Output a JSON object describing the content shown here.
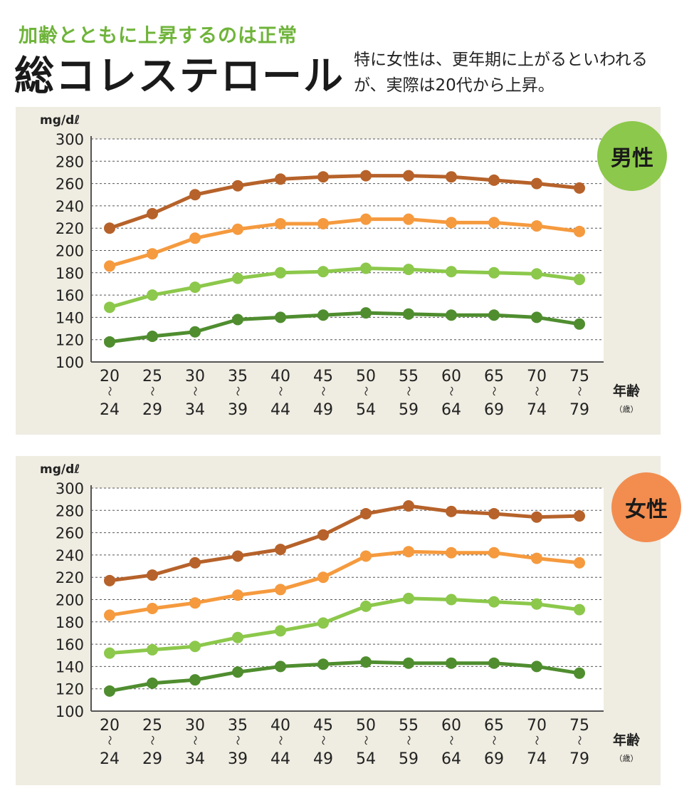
{
  "header": {
    "subtitle": "加齢とともに上昇するのは正常",
    "title": "総コレステロール",
    "description": "特に女性は、更年期に上がるといわれるが、実際は20代から上昇。"
  },
  "colors": {
    "background": "#ffffff",
    "panel": "#efece1",
    "plot": "#ffffff",
    "subtitle": "#6fb43a",
    "series": [
      "#b6622a",
      "#f59a3e",
      "#8cc84b",
      "#4f8d2f"
    ],
    "badge_male": "#8cc84b",
    "badge_female": "#f28d4f"
  },
  "chart_data": [
    {
      "type": "line",
      "badge": "男性",
      "unit_label": "mg/dℓ",
      "xlabel": "年齢",
      "xunit": "（歳）",
      "range_mark": "〜",
      "categories": [
        {
          "start": "20",
          "end": "24"
        },
        {
          "start": "25",
          "end": "29"
        },
        {
          "start": "30",
          "end": "34"
        },
        {
          "start": "35",
          "end": "39"
        },
        {
          "start": "40",
          "end": "44"
        },
        {
          "start": "45",
          "end": "49"
        },
        {
          "start": "50",
          "end": "54"
        },
        {
          "start": "55",
          "end": "59"
        },
        {
          "start": "60",
          "end": "64"
        },
        {
          "start": "65",
          "end": "69"
        },
        {
          "start": "70",
          "end": "74"
        },
        {
          "start": "75",
          "end": "79"
        }
      ],
      "ylim": [
        100,
        300
      ],
      "yticks": [
        100,
        120,
        140,
        160,
        180,
        200,
        220,
        240,
        260,
        280,
        300
      ],
      "grid": true,
      "series": [
        {
          "values": [
            220,
            233,
            250,
            258,
            264,
            266,
            267,
            267,
            266,
            263,
            260,
            256
          ]
        },
        {
          "values": [
            186,
            197,
            211,
            219,
            224,
            224,
            228,
            228,
            225,
            225,
            222,
            217
          ]
        },
        {
          "values": [
            149,
            160,
            167,
            175,
            180,
            181,
            184,
            183,
            181,
            180,
            179,
            174
          ]
        },
        {
          "values": [
            118,
            123,
            127,
            138,
            140,
            142,
            144,
            143,
            142,
            142,
            140,
            134
          ]
        }
      ]
    },
    {
      "type": "line",
      "badge": "女性",
      "unit_label": "mg/dℓ",
      "xlabel": "年齢",
      "xunit": "（歳）",
      "range_mark": "〜",
      "categories": [
        {
          "start": "20",
          "end": "24"
        },
        {
          "start": "25",
          "end": "29"
        },
        {
          "start": "30",
          "end": "34"
        },
        {
          "start": "35",
          "end": "39"
        },
        {
          "start": "40",
          "end": "44"
        },
        {
          "start": "45",
          "end": "49"
        },
        {
          "start": "50",
          "end": "54"
        },
        {
          "start": "55",
          "end": "59"
        },
        {
          "start": "60",
          "end": "64"
        },
        {
          "start": "65",
          "end": "69"
        },
        {
          "start": "70",
          "end": "74"
        },
        {
          "start": "75",
          "end": "79"
        }
      ],
      "ylim": [
        100,
        300
      ],
      "yticks": [
        100,
        120,
        140,
        160,
        180,
        200,
        220,
        240,
        260,
        280,
        300
      ],
      "grid": true,
      "series": [
        {
          "values": [
            217,
            222,
            233,
            239,
            245,
            258,
            277,
            284,
            279,
            277,
            274,
            275
          ]
        },
        {
          "values": [
            186,
            192,
            197,
            204,
            209,
            220,
            239,
            243,
            242,
            242,
            237,
            233
          ]
        },
        {
          "values": [
            152,
            155,
            158,
            166,
            172,
            179,
            194,
            201,
            200,
            198,
            196,
            191
          ]
        },
        {
          "values": [
            118,
            125,
            128,
            135,
            140,
            142,
            144,
            143,
            143,
            143,
            140,
            134
          ]
        }
      ]
    }
  ]
}
